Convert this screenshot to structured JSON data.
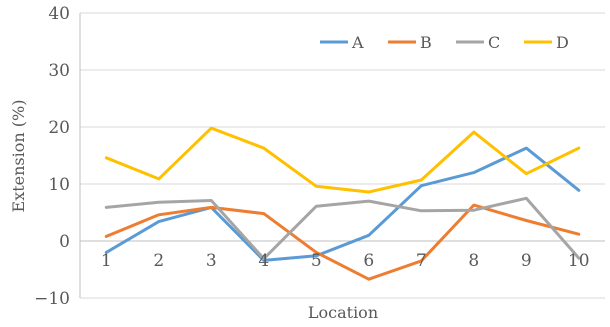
{
  "chart_data": {
    "type": "line",
    "title": "",
    "xlabel": "Location",
    "ylabel": "Extension (%)",
    "categories": [
      "1",
      "2",
      "3",
      "4",
      "5",
      "6",
      "7",
      "8",
      "9",
      "10"
    ],
    "ylim": [
      -10,
      40
    ],
    "yticks": [
      -10,
      0,
      10,
      20,
      30,
      40
    ],
    "grid": true,
    "legend_position": "top-right",
    "series": [
      {
        "name": "A",
        "color": "#5B9BD5",
        "values": [
          -2.0,
          3.4,
          5.9,
          -3.4,
          -2.6,
          1.0,
          9.7,
          12.0,
          16.3,
          8.9
        ]
      },
      {
        "name": "B",
        "color": "#ED7D31",
        "values": [
          0.8,
          4.6,
          5.9,
          4.8,
          -2.0,
          -6.7,
          -3.5,
          6.3,
          3.6,
          1.2
        ]
      },
      {
        "name": "C",
        "color": "#A5A5A5",
        "values": [
          5.9,
          6.8,
          7.1,
          -3.1,
          6.1,
          7.0,
          5.3,
          5.4,
          7.5,
          -3.0
        ]
      },
      {
        "name": "D",
        "color": "#FFC000",
        "values": [
          14.6,
          10.9,
          19.8,
          16.3,
          9.6,
          8.6,
          10.7,
          19.1,
          11.8,
          16.3
        ]
      }
    ]
  }
}
